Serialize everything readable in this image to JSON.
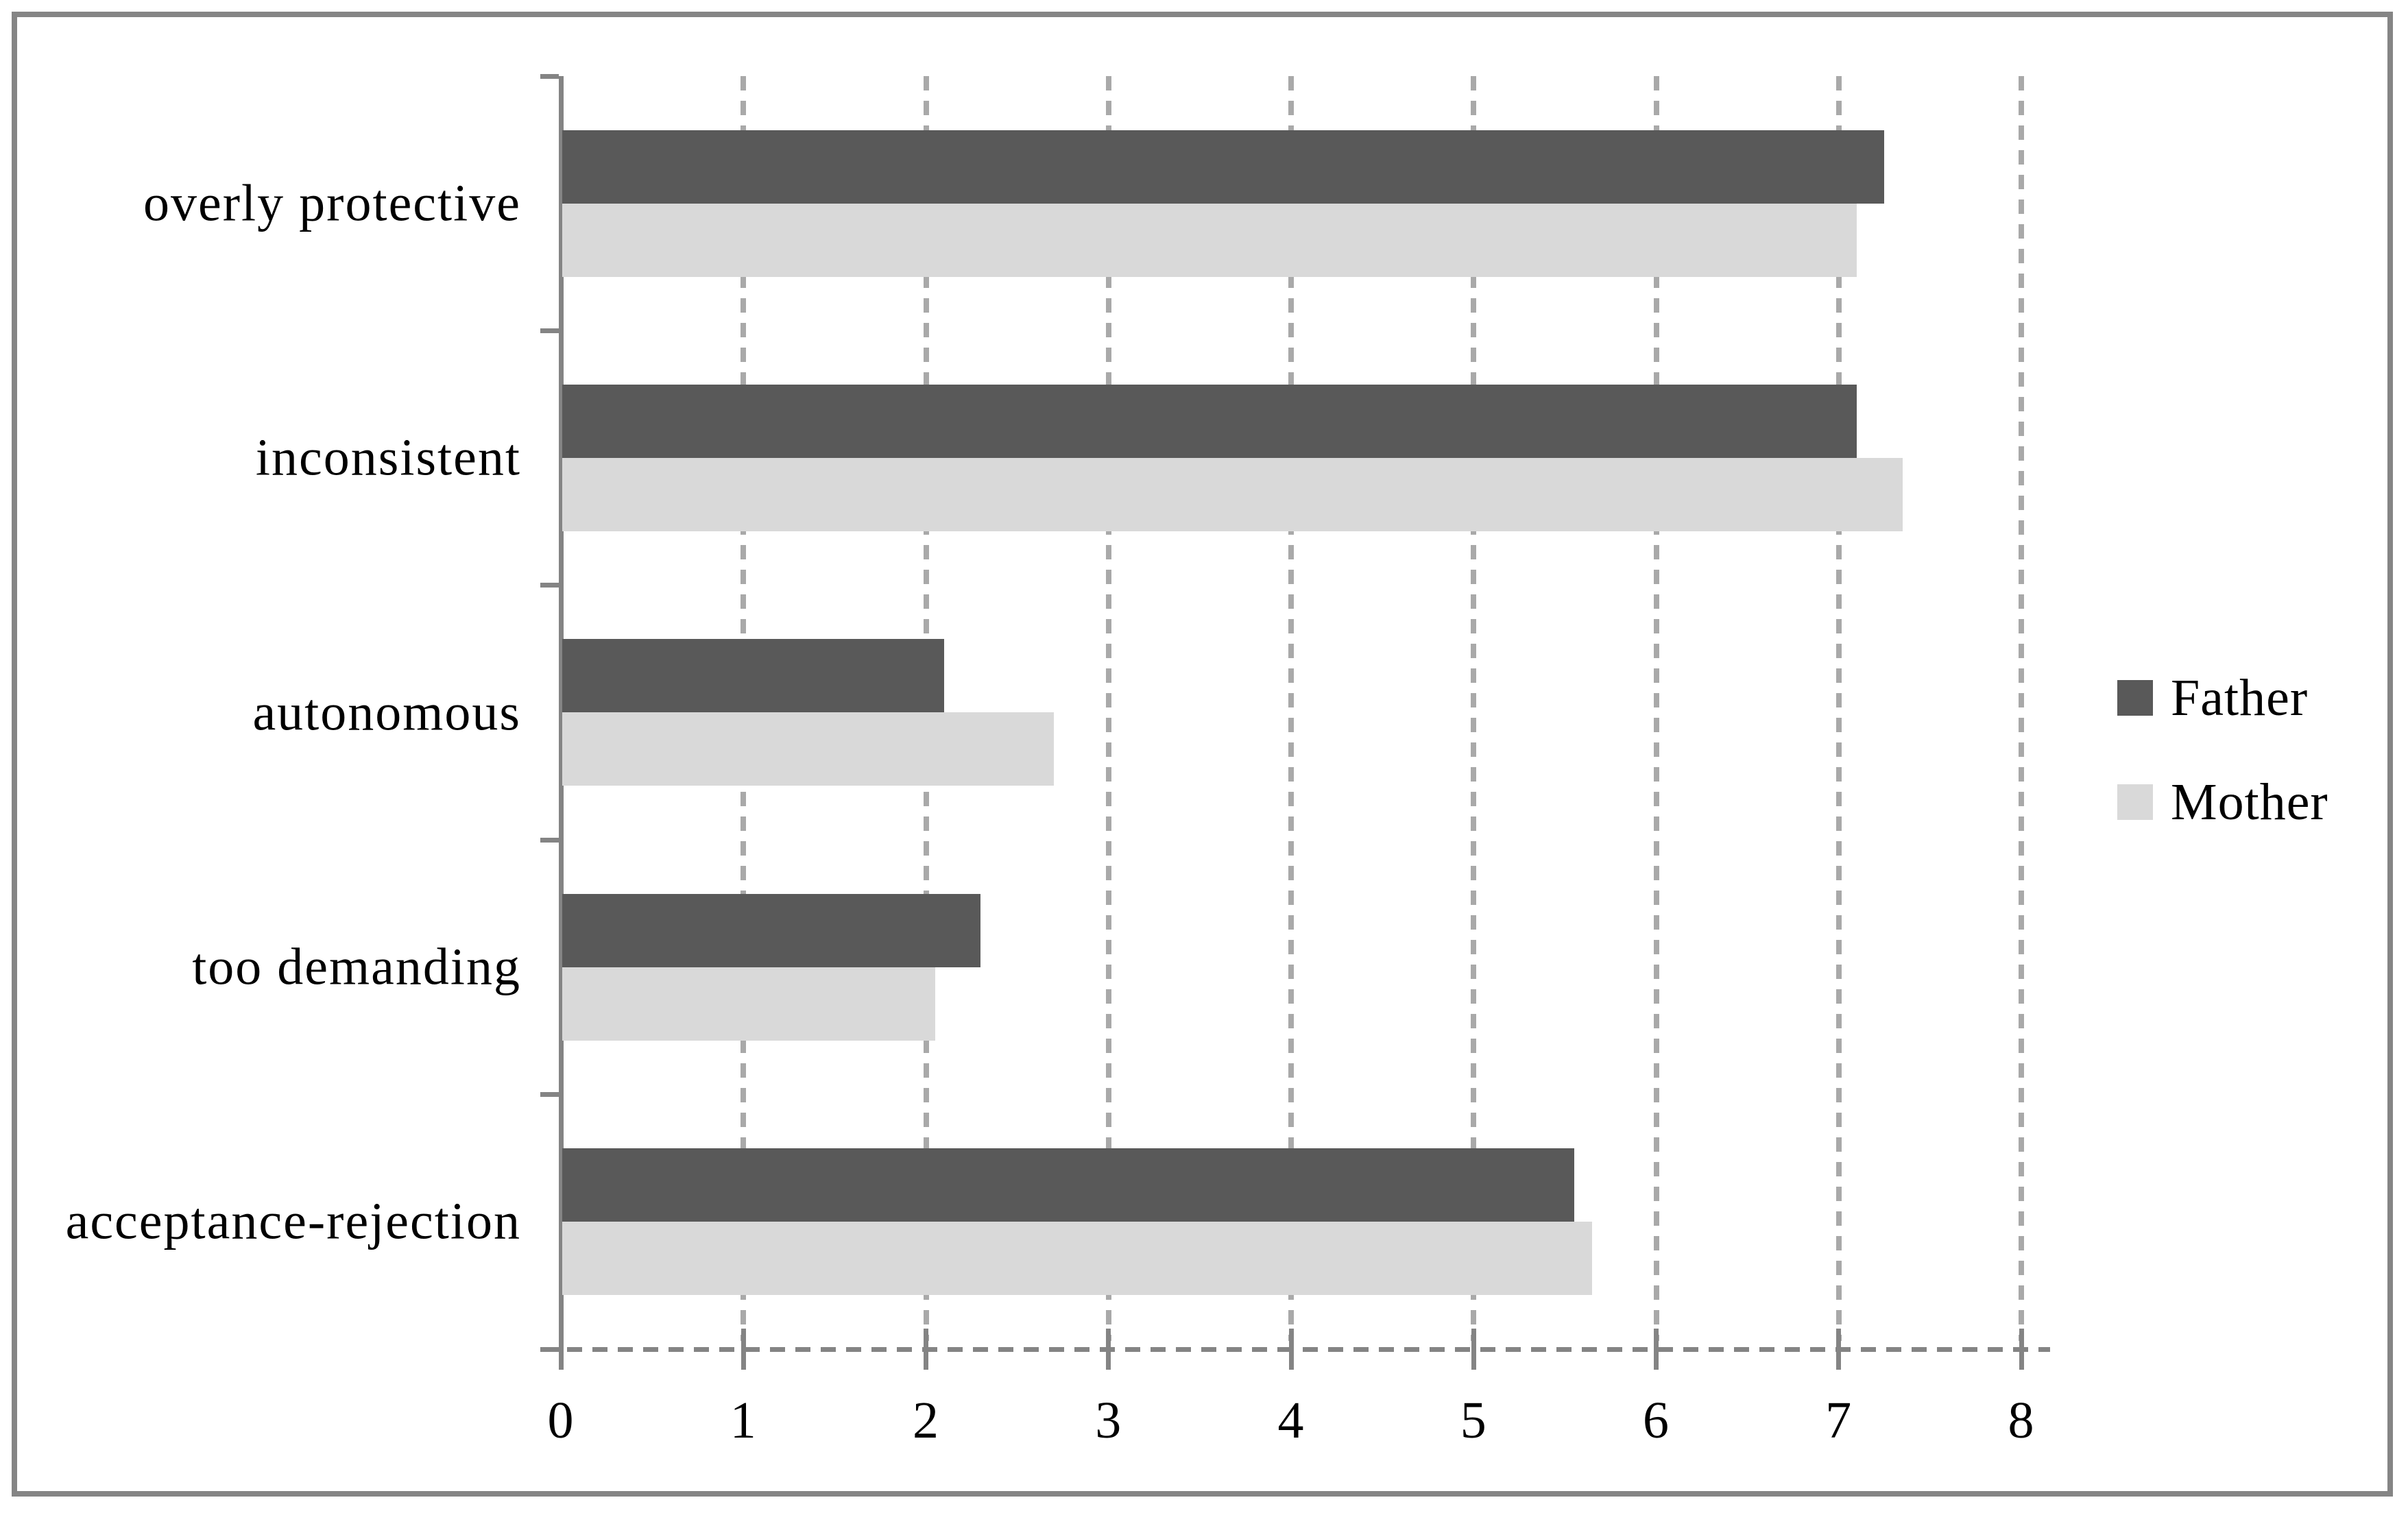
{
  "chart_data": {
    "type": "bar",
    "orientation": "horizontal",
    "categories": [
      "overly protective",
      "inconsistent",
      "autonomous",
      "too demanding",
      "acceptance-rejection"
    ],
    "series": [
      {
        "name": "Father",
        "color": "#595959",
        "values": [
          7.25,
          7.1,
          2.1,
          2.3,
          5.55
        ]
      },
      {
        "name": "Mother",
        "color": "#D9D9D9",
        "values": [
          7.1,
          7.35,
          2.7,
          2.05,
          5.65
        ]
      }
    ],
    "xlim": [
      0,
      8
    ],
    "x_ticks": [
      0,
      1,
      2,
      3,
      4,
      5,
      6,
      7,
      8
    ],
    "grid": "vertical-dashed",
    "legend_position": "right"
  },
  "styles": {
    "father_color": "#595959",
    "mother_color": "#D9D9D9",
    "axis_color": "#848484",
    "grid_color": "#A9A9A9",
    "border_color": "#858585",
    "text_color": "#000000",
    "background": "#FFFFFF"
  }
}
